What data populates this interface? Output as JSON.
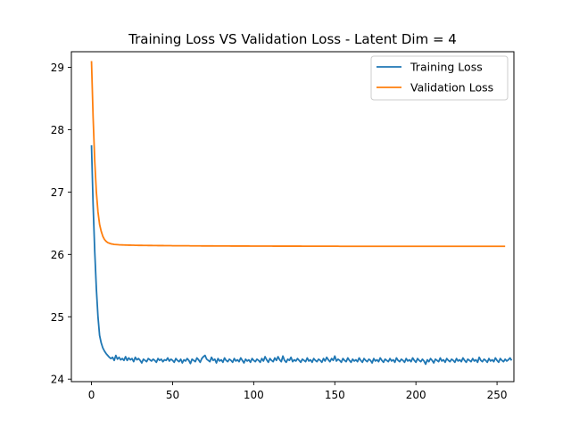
{
  "chart_data": {
    "type": "line",
    "title": "Training Loss VS Validation Loss - Latent Dim = 4",
    "xlabel": "",
    "ylabel": "",
    "xlim": [
      -12.4,
      260.4
    ],
    "ylim": [
      23.96,
      29.25
    ],
    "xticks": [
      0,
      50,
      100,
      150,
      200,
      250
    ],
    "yticks": [
      24,
      25,
      26,
      27,
      28,
      29
    ],
    "grid": false,
    "legend_position": "top-right",
    "series": [
      {
        "name": "Training Loss",
        "color": "#1f77b4",
        "x_start": 0,
        "values": [
          27.75,
          26.8,
          26.05,
          25.45,
          25.0,
          24.7,
          24.58,
          24.5,
          24.45,
          24.41,
          24.38,
          24.35,
          24.33,
          24.35,
          24.3,
          24.38,
          24.32,
          24.35,
          24.31,
          24.33,
          24.3,
          24.36,
          24.3,
          24.34,
          24.31,
          24.33,
          24.28,
          24.35,
          24.31,
          24.33,
          24.3,
          24.26,
          24.32,
          24.3,
          24.28,
          24.33,
          24.31,
          24.29,
          24.32,
          24.3,
          24.27,
          24.33,
          24.3,
          24.32,
          24.28,
          24.31,
          24.3,
          24.34,
          24.29,
          24.32,
          24.3,
          24.27,
          24.33,
          24.3,
          24.28,
          24.32,
          24.26,
          24.31,
          24.29,
          24.33,
          24.3,
          24.25,
          24.32,
          24.3,
          24.28,
          24.34,
          24.31,
          24.27,
          24.33,
          24.36,
          24.38,
          24.32,
          24.3,
          24.28,
          24.35,
          24.3,
          24.32,
          24.26,
          24.33,
          24.29,
          24.31,
          24.27,
          24.34,
          24.3,
          24.28,
          24.32,
          24.3,
          24.27,
          24.33,
          24.29,
          24.31,
          24.28,
          24.34,
          24.3,
          24.26,
          24.32,
          24.29,
          24.31,
          24.27,
          24.33,
          24.3,
          24.28,
          24.32,
          24.3,
          24.27,
          24.33,
          24.29,
          24.36,
          24.31,
          24.27,
          24.33,
          24.3,
          24.28,
          24.34,
          24.3,
          24.36,
          24.31,
          24.28,
          24.37,
          24.3,
          24.27,
          24.32,
          24.3,
          24.35,
          24.28,
          24.31,
          24.29,
          24.33,
          24.3,
          24.27,
          24.32,
          24.3,
          24.28,
          24.34,
          24.29,
          24.31,
          24.27,
          24.33,
          24.3,
          24.28,
          24.32,
          24.3,
          24.27,
          24.33,
          24.29,
          24.35,
          24.31,
          24.28,
          24.33,
          24.3,
          24.37,
          24.29,
          24.32,
          24.3,
          24.27,
          24.33,
          24.3,
          24.28,
          24.34,
          24.3,
          24.27,
          24.32,
          24.29,
          24.31,
          24.28,
          24.34,
          24.3,
          24.27,
          24.33,
          24.3,
          24.28,
          24.32,
          24.3,
          24.26,
          24.33,
          24.29,
          24.31,
          24.28,
          24.34,
          24.3,
          24.27,
          24.32,
          24.3,
          24.28,
          24.33,
          24.29,
          24.31,
          24.27,
          24.34,
          24.3,
          24.28,
          24.32,
          24.3,
          24.27,
          24.33,
          24.29,
          24.31,
          24.28,
          24.34,
          24.3,
          24.27,
          24.33,
          24.3,
          24.28,
          24.32,
          24.29,
          24.24,
          24.31,
          24.28,
          24.33,
          24.3,
          24.26,
          24.32,
          24.3,
          24.28,
          24.34,
          24.29,
          24.31,
          24.27,
          24.33,
          24.3,
          24.28,
          24.32,
          24.3,
          24.27,
          24.33,
          24.29,
          24.31,
          24.28,
          24.34,
          24.3,
          24.27,
          24.32,
          24.3,
          24.28,
          24.33,
          24.29,
          24.31,
          24.27,
          24.35,
          24.3,
          24.28,
          24.32,
          24.3,
          24.27,
          24.33,
          24.29,
          24.31,
          24.28,
          24.34,
          24.3,
          24.27,
          24.33,
          24.3,
          24.28,
          24.32,
          24.29,
          24.31,
          24.34,
          24.3
        ]
      },
      {
        "name": "Validation Loss",
        "color": "#ff7f0e",
        "x_start": 0,
        "values": [
          29.1,
          28.2,
          27.5,
          27.0,
          26.68,
          26.48,
          26.37,
          26.29,
          26.24,
          26.21,
          26.19,
          26.18,
          26.17,
          26.165,
          26.16,
          26.158,
          26.156,
          26.154,
          26.153,
          26.152,
          26.151,
          26.15,
          26.149,
          26.148,
          26.148,
          26.147,
          26.147,
          26.146,
          26.146,
          26.145,
          26.145,
          26.145,
          26.144,
          26.144,
          26.144,
          26.143,
          26.143,
          26.143,
          26.142,
          26.142,
          26.142,
          26.141,
          26.141,
          26.141,
          26.141,
          26.14,
          26.14,
          26.14,
          26.14,
          26.14,
          26.139,
          26.139,
          26.139,
          26.139,
          26.139,
          26.138,
          26.138,
          26.138,
          26.138,
          26.138,
          26.138,
          26.137,
          26.137,
          26.137,
          26.137,
          26.137,
          26.137,
          26.137,
          26.136,
          26.136,
          26.136,
          26.136,
          26.136,
          26.136,
          26.136,
          26.136,
          26.135,
          26.135,
          26.135,
          26.135,
          26.135,
          26.135,
          26.135,
          26.135,
          26.135,
          26.135,
          26.134,
          26.134,
          26.134,
          26.134,
          26.134,
          26.134,
          26.134,
          26.134,
          26.134,
          26.134,
          26.134,
          26.134,
          26.133,
          26.133,
          26.133,
          26.133,
          26.133,
          26.133,
          26.133,
          26.133,
          26.133,
          26.133,
          26.133,
          26.133,
          26.133,
          26.133,
          26.132,
          26.132,
          26.132,
          26.132,
          26.132,
          26.132,
          26.132,
          26.132,
          26.132,
          26.132,
          26.132,
          26.132,
          26.132,
          26.132,
          26.132,
          26.132,
          26.132,
          26.132,
          26.131,
          26.131,
          26.131,
          26.131,
          26.131,
          26.131,
          26.131,
          26.131,
          26.131,
          26.131,
          26.131,
          26.131,
          26.131,
          26.131,
          26.131,
          26.131,
          26.131,
          26.131,
          26.131,
          26.131,
          26.131,
          26.131,
          26.131,
          26.13,
          26.13,
          26.13,
          26.13,
          26.13,
          26.13,
          26.13,
          26.13,
          26.13,
          26.13,
          26.13,
          26.13,
          26.13,
          26.13,
          26.13,
          26.13,
          26.13,
          26.13,
          26.13,
          26.13,
          26.13,
          26.13,
          26.13,
          26.13,
          26.13,
          26.13,
          26.13,
          26.13,
          26.13,
          26.13,
          26.13,
          26.13,
          26.13,
          26.13,
          26.13,
          26.13,
          26.13,
          26.13,
          26.13,
          26.13,
          26.13,
          26.13,
          26.13,
          26.13,
          26.13,
          26.13,
          26.13,
          26.13,
          26.13,
          26.13,
          26.13,
          26.13,
          26.13,
          26.13,
          26.13,
          26.13,
          26.13,
          26.13,
          26.13,
          26.13,
          26.13,
          26.13,
          26.13,
          26.13,
          26.13,
          26.13,
          26.13,
          26.13,
          26.13,
          26.13,
          26.13,
          26.13,
          26.13,
          26.13,
          26.13,
          26.13,
          26.13,
          26.13,
          26.13,
          26.13,
          26.13,
          26.13,
          26.13,
          26.13,
          26.13,
          26.13,
          26.13,
          26.13,
          26.13,
          26.13,
          26.13,
          26.13,
          26.13,
          26.13,
          26.13,
          26.13,
          26.13,
          26.13,
          26.13,
          26.13,
          26.13,
          26.13,
          26.13
        ]
      }
    ]
  }
}
